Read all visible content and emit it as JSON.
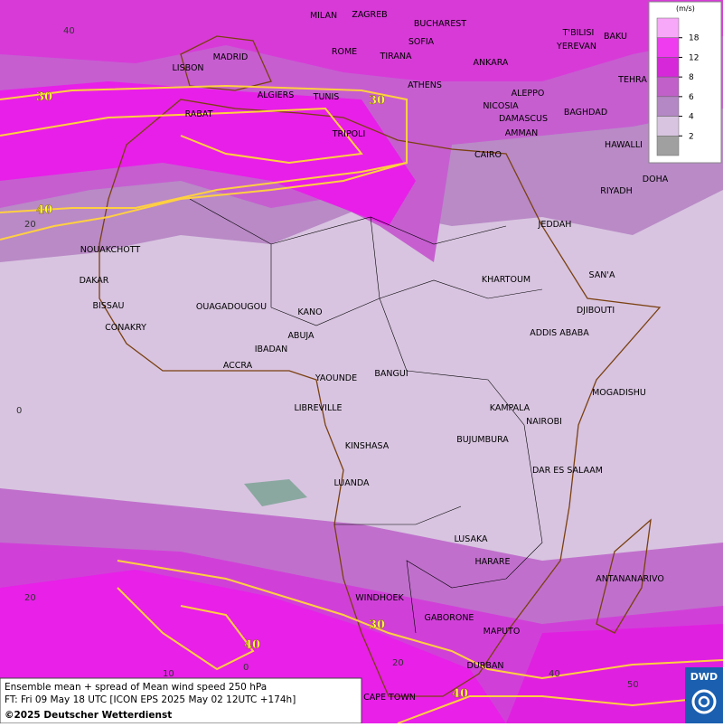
{
  "legend": {
    "unit": "(m/s)",
    "ticks": [
      18,
      12,
      8,
      6,
      4,
      2
    ]
  },
  "cities": [
    "MILAN",
    "ZAGREB",
    "BUCHAREST",
    "T'BILISI",
    "BAKU",
    "MADRID",
    "ROME",
    "SOFIA",
    "YEREVAN",
    "LISBON",
    "TIRANA",
    "ANKARA",
    "TEHRA",
    "ALGIERS",
    "TUNIS",
    "ATHENS",
    "ALEPPO",
    "RABAT",
    "NICOSIA",
    "BAGHDAD",
    "TRIPOLI",
    "DAMASCUS",
    "AMMAN",
    "HAWALLI",
    "CAIRO",
    "DOHA",
    "RIYADH",
    "JEDDAH",
    "NOUAKCHOTT",
    "SAN'A",
    "DAKAR",
    "KHARTOUM",
    "BISSAU",
    "OUAGADOUGOU",
    "DJIBOUTI",
    "KANO",
    "CONAKRY",
    "ADDIS ABABA",
    "ABUJA",
    "IBADAN",
    "ACCRA",
    "YAOUNDE",
    "BANGUI",
    "MOGADISHU",
    "LIBREVILLE",
    "KAMPALA",
    "NAIROBI",
    "BUJUMBURA",
    "KINSHASA",
    "DAR ES SALAAM",
    "LUANDA",
    "LUSAKA",
    "HARARE",
    "ANTANANARIVO",
    "WINDHOEK",
    "GABORONE",
    "MAPUTO",
    "DURBAN",
    "CAPE TOWN"
  ],
  "contour_labels": [
    "30",
    "30",
    "40",
    "30",
    "40",
    "40"
  ],
  "lat_labels": [
    "40",
    "20",
    "0",
    "20"
  ],
  "lon_labels": [
    "10",
    "0",
    "20",
    "40",
    "50"
  ],
  "footer": {
    "line1": "Ensemble mean + spread of Mean wind speed 250 hPa",
    "line2": "FT: Fri 09 May 18 UTC [ICON EPS 2025 May 02 12UTC +174h]",
    "line3": "©2025 Deutscher Wetterdienst"
  },
  "logo": "DWD"
}
